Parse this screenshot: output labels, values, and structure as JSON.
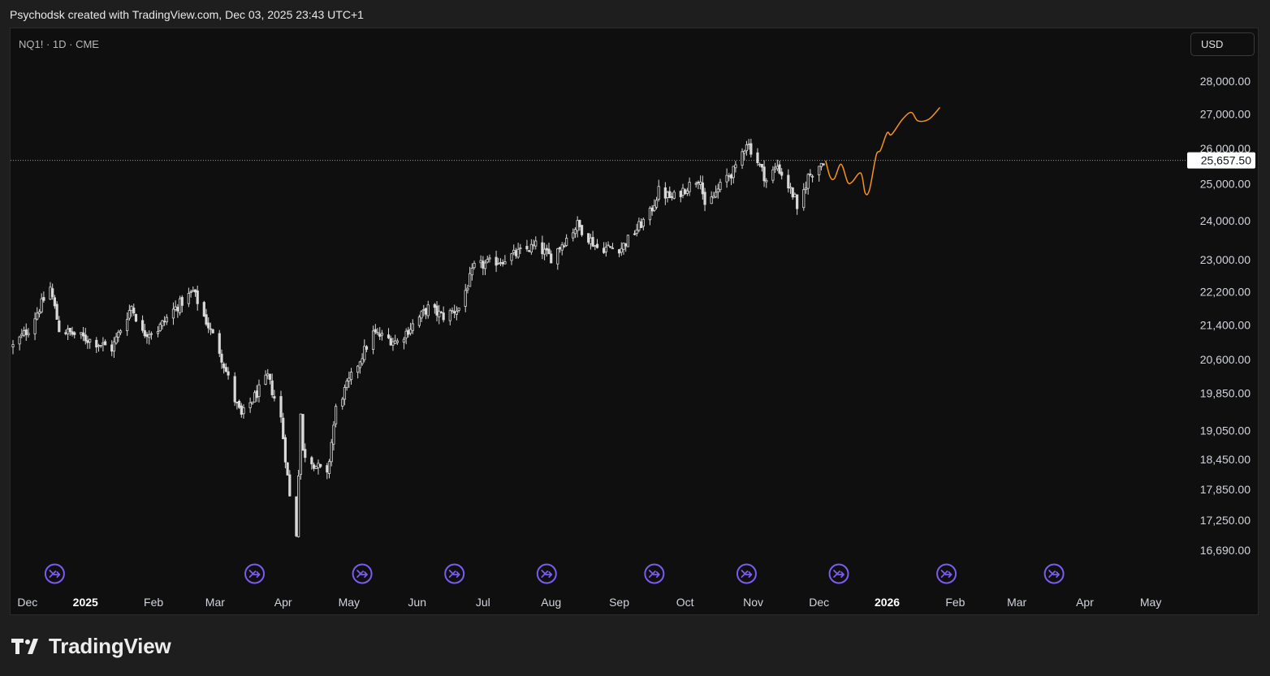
{
  "header": {
    "credit": "Psychodsk created with TradingView.com, Dec 03, 2025 23:43 UTC+1"
  },
  "symbol_label": "NQ1! · 1D · CME",
  "currency_button": "USD",
  "brand": {
    "name": "TradingView",
    "icon": "tradingview-logo-icon"
  },
  "colors": {
    "background": "#0f0f0f",
    "candle": "#d9d9d9",
    "projection": "#f7931a",
    "event_marker": "#7b5cf0",
    "price_label_bg": "#ffffff"
  },
  "chart_data": {
    "type": "candlestick",
    "title": "",
    "scale": "log",
    "ylim": [
      16690,
      28000
    ],
    "y_ticks": [
      "28,000.00",
      "27,000.00",
      "26,000.00",
      "25,000.00",
      "24,000.00",
      "23,000.00",
      "22,200.00",
      "21,400.00",
      "20,600.00",
      "19,850.00",
      "19,050.00",
      "18,450.00",
      "17,850.00",
      "17,250.00",
      "16,690.00"
    ],
    "x_ticks": [
      {
        "label": "Dec",
        "date": "2024-12-01",
        "bold": false
      },
      {
        "label": "2025",
        "date": "2025-01-01",
        "bold": true
      },
      {
        "label": "Feb",
        "date": "2025-02-01",
        "bold": false
      },
      {
        "label": "Mar",
        "date": "2025-03-01",
        "bold": false
      },
      {
        "label": "Apr",
        "date": "2025-04-01",
        "bold": false
      },
      {
        "label": "May",
        "date": "2025-05-01",
        "bold": false
      },
      {
        "label": "Jun",
        "date": "2025-06-01",
        "bold": false
      },
      {
        "label": "Jul",
        "date": "2025-07-01",
        "bold": false
      },
      {
        "label": "Aug",
        "date": "2025-08-01",
        "bold": false
      },
      {
        "label": "Sep",
        "date": "2025-09-01",
        "bold": false
      },
      {
        "label": "Oct",
        "date": "2025-10-01",
        "bold": false
      },
      {
        "label": "Nov",
        "date": "2025-11-01",
        "bold": false
      },
      {
        "label": "Dec",
        "date": "2025-12-01",
        "bold": false
      },
      {
        "label": "2026",
        "date": "2026-01-01",
        "bold": true
      },
      {
        "label": "Feb",
        "date": "2026-02-01",
        "bold": false
      },
      {
        "label": "Mar",
        "date": "2026-03-01",
        "bold": false
      },
      {
        "label": "Apr",
        "date": "2026-04-01",
        "bold": false
      },
      {
        "label": "May",
        "date": "2026-05-01",
        "bold": false
      }
    ],
    "last_price": 25657.5,
    "last_price_label": "25,657.50",
    "price_path": [
      [
        "2024-11-29",
        20900
      ],
      [
        "2024-12-06",
        21300
      ],
      [
        "2024-12-16",
        22300
      ],
      [
        "2024-12-20",
        21300
      ],
      [
        "2024-12-31",
        21100
      ],
      [
        "2025-01-13",
        20850
      ],
      [
        "2025-01-22",
        21850
      ],
      [
        "2025-01-27",
        21200
      ],
      [
        "2025-02-03",
        21300
      ],
      [
        "2025-02-10",
        21750
      ],
      [
        "2025-02-19",
        22200
      ],
      [
        "2025-02-24",
        21600
      ],
      [
        "2025-03-03",
        20800
      ],
      [
        "2025-03-10",
        19700
      ],
      [
        "2025-03-13",
        19350
      ],
      [
        "2025-03-25",
        20200
      ],
      [
        "2025-03-31",
        19300
      ],
      [
        "2025-04-04",
        17700
      ],
      [
        "2025-04-07",
        17000
      ],
      [
        "2025-04-09",
        19400
      ],
      [
        "2025-04-10",
        18600
      ],
      [
        "2025-04-21",
        18100
      ],
      [
        "2025-04-25",
        19500
      ],
      [
        "2025-05-02",
        20200
      ],
      [
        "2025-05-12",
        21200
      ],
      [
        "2025-05-23",
        21000
      ],
      [
        "2025-06-06",
        21800
      ],
      [
        "2025-06-13",
        21600
      ],
      [
        "2025-06-20",
        21800
      ],
      [
        "2025-06-27",
        22800
      ],
      [
        "2025-07-10",
        23000
      ],
      [
        "2025-07-25",
        23350
      ],
      [
        "2025-08-01",
        23050
      ],
      [
        "2025-08-13",
        23900
      ],
      [
        "2025-08-22",
        23300
      ],
      [
        "2025-09-02",
        23300
      ],
      [
        "2025-09-15",
        24200
      ],
      [
        "2025-09-19",
        24800
      ],
      [
        "2025-09-25",
        24600
      ],
      [
        "2025-10-08",
        25200
      ],
      [
        "2025-10-10",
        24300
      ],
      [
        "2025-10-20",
        25200
      ],
      [
        "2025-10-24",
        25400
      ],
      [
        "2025-10-29",
        26200
      ],
      [
        "2025-11-04",
        25500
      ],
      [
        "2025-11-07",
        25100
      ],
      [
        "2025-11-12",
        25500
      ],
      [
        "2025-11-20",
        24600
      ],
      [
        "2025-11-21",
        24200
      ],
      [
        "2025-11-26",
        25200
      ],
      [
        "2025-12-03",
        25657.5
      ]
    ],
    "projection": [
      [
        "2025-12-04",
        25650
      ],
      [
        "2025-12-06",
        25200
      ],
      [
        "2025-12-08",
        25150
      ],
      [
        "2025-12-11",
        25550
      ],
      [
        "2025-12-14",
        25050
      ],
      [
        "2025-12-16",
        25050
      ],
      [
        "2025-12-20",
        25300
      ],
      [
        "2025-12-22",
        24750
      ],
      [
        "2025-12-24",
        24850
      ],
      [
        "2025-12-27",
        25800
      ],
      [
        "2025-12-29",
        25950
      ],
      [
        "2026-01-01",
        26450
      ],
      [
        "2026-01-03",
        26400
      ],
      [
        "2026-01-08",
        26850
      ],
      [
        "2026-01-12",
        27050
      ],
      [
        "2026-01-15",
        26800
      ],
      [
        "2026-01-20",
        26850
      ],
      [
        "2026-01-25",
        27200
      ]
    ],
    "event_markers": [
      "2024-12-18",
      "2025-03-19",
      "2025-05-07",
      "2025-06-18",
      "2025-07-30",
      "2025-09-17",
      "2025-10-29",
      "2025-12-10",
      "2026-01-28",
      "2026-03-18"
    ]
  }
}
